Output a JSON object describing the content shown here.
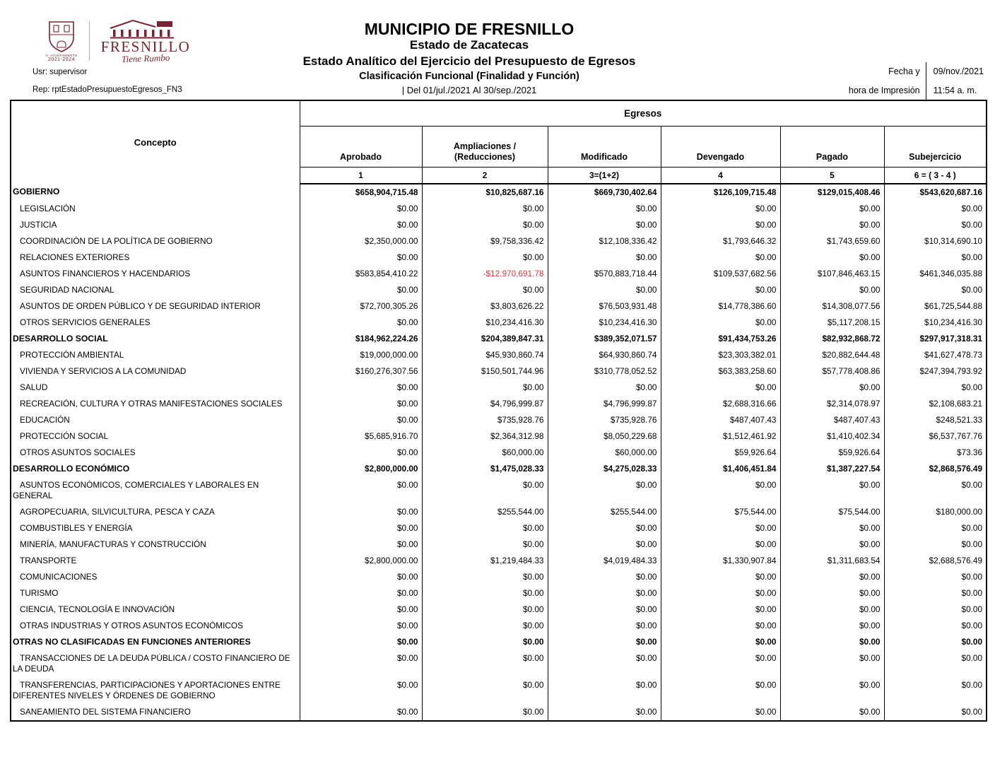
{
  "colors": {
    "brand_maroon": "#7a2330",
    "negative_red": "#e5333a",
    "border": "#000000"
  },
  "header": {
    "logo": {
      "council": "H. AYUNTAMIENTO",
      "period": "2021-2024",
      "municipality": "FRESNILLO",
      "slogan": "Tiene Rumbo"
    },
    "user": "Usr: supervisor",
    "report": "Rep: rptEstadoPresupuestoEgresos_FN3",
    "titles": [
      "MUNICIPIO DE FRESNILLO",
      "Estado de Zacatecas",
      "Estado Analítico del Ejercicio del Presupuesto de Egresos",
      "Clasificación Funcional (Finalidad y Función)",
      "| Del 01/jul./2021 Al 30/sep./2021"
    ],
    "print_info": {
      "label_line1": "Fecha y",
      "label_line2": "hora de Impresión",
      "date": "09/nov./2021",
      "time": "11:54 a. m."
    }
  },
  "table": {
    "concept_header": "Concepto",
    "group_header": "Egresos",
    "columns": [
      "Aprobado",
      "Ampliaciones /\n(Reducciones)",
      "Modificado",
      "Devengado",
      "Pagado",
      "Subejercicio"
    ],
    "column_numbers": [
      "1",
      "2",
      "3=(1+2)",
      "4",
      "5",
      "6 = ( 3 - 4 )"
    ],
    "rows": [
      {
        "label": "GOBIERNO",
        "section": true,
        "values": [
          "$658,904,715.48",
          "$10,825,687.16",
          "$669,730,402.64",
          "$126,109,715.48",
          "$129,015,408.46",
          "$543,620,687.16"
        ]
      },
      {
        "label": "LEGISLACIÓN",
        "section": false,
        "values": [
          "$0.00",
          "$0.00",
          "$0.00",
          "$0.00",
          "$0.00",
          "$0.00"
        ]
      },
      {
        "label": "JUSTICIA",
        "section": false,
        "values": [
          "$0.00",
          "$0.00",
          "$0.00",
          "$0.00",
          "$0.00",
          "$0.00"
        ]
      },
      {
        "label": "COORDINACIÓN DE LA POLÍTICA DE GOBIERNO",
        "section": false,
        "values": [
          "$2,350,000.00",
          "$9,758,336.42",
          "$12,108,336.42",
          "$1,793,646.32",
          "$1,743,659.60",
          "$10,314,690.10"
        ]
      },
      {
        "label": "RELACIONES EXTERIORES",
        "section": false,
        "values": [
          "$0.00",
          "$0.00",
          "$0.00",
          "$0.00",
          "$0.00",
          "$0.00"
        ]
      },
      {
        "label": "ASUNTOS FINANCIEROS Y HACENDARIOS",
        "section": false,
        "values": [
          "$583,854,410.22",
          "-$12,970,691.78",
          "$570,883,718.44",
          "$109,537,682.56",
          "$107,846,463.15",
          "$461,346,035.88"
        ]
      },
      {
        "label": "SEGURIDAD NACIONAL",
        "section": false,
        "values": [
          "$0.00",
          "$0.00",
          "$0.00",
          "$0.00",
          "$0.00",
          "$0.00"
        ]
      },
      {
        "label": "ASUNTOS DE ORDEN PÚBLICO Y DE SEGURIDAD INTERIOR",
        "section": false,
        "values": [
          "$72,700,305.26",
          "$3,803,626.22",
          "$76,503,931.48",
          "$14,778,386.60",
          "$14,308,077.56",
          "$61,725,544.88"
        ]
      },
      {
        "label": "OTROS SERVICIOS GENERALES",
        "section": false,
        "values": [
          "$0.00",
          "$10,234,416.30",
          "$10,234,416.30",
          "$0.00",
          "$5,117,208.15",
          "$10,234,416.30"
        ]
      },
      {
        "label": "DESARROLLO SOCIAL",
        "section": true,
        "values": [
          "$184,962,224.26",
          "$204,389,847.31",
          "$389,352,071.57",
          "$91,434,753.26",
          "$82,932,868.72",
          "$297,917,318.31"
        ]
      },
      {
        "label": "PROTECCIÓN AMBIENTAL",
        "section": false,
        "values": [
          "$19,000,000.00",
          "$45,930,860.74",
          "$64,930,860.74",
          "$23,303,382.01",
          "$20,882,644.48",
          "$41,627,478.73"
        ]
      },
      {
        "label": "VIVIENDA Y SERVICIOS  A LA COMUNIDAD",
        "section": false,
        "values": [
          "$160,276,307.56",
          "$150,501,744.96",
          "$310,778,052.52",
          "$63,383,258.60",
          "$57,778,408.86",
          "$247,394,793.92"
        ]
      },
      {
        "label": "SALUD",
        "section": false,
        "values": [
          "$0.00",
          "$0.00",
          "$0.00",
          "$0.00",
          "$0.00",
          "$0.00"
        ]
      },
      {
        "label": "RECREACIÓN, CULTURA Y OTRAS MANIFESTACIONES SOCIALES",
        "section": false,
        "values": [
          "$0.00",
          "$4,796,999.87",
          "$4,796,999.87",
          "$2,688,316.66",
          "$2,314,078.97",
          "$2,108,683.21"
        ]
      },
      {
        "label": "EDUCACIÓN",
        "section": false,
        "values": [
          "$0.00",
          "$735,928.76",
          "$735,928.76",
          "$487,407.43",
          "$487,407.43",
          "$248,521.33"
        ]
      },
      {
        "label": "PROTECCIÓN SOCIAL",
        "section": false,
        "values": [
          "$5,685,916.70",
          "$2,364,312.98",
          "$8,050,229.68",
          "$1,512,461.92",
          "$1,410,402.34",
          "$6,537,767.76"
        ]
      },
      {
        "label": "OTROS ASUNTOS SOCIALES",
        "section": false,
        "values": [
          "$0.00",
          "$60,000.00",
          "$60,000.00",
          "$59,926.64",
          "$59,926.64",
          "$73.36"
        ]
      },
      {
        "label": "DESARROLLO ECONÓMICO",
        "section": true,
        "values": [
          "$2,800,000.00",
          "$1,475,028.33",
          "$4,275,028.33",
          "$1,406,451.84",
          "$1,387,227.54",
          "$2,868,576.49"
        ]
      },
      {
        "label": "ASUNTOS ECONÓMICOS, COMERCIALES Y LABORALES EN GENERAL",
        "section": false,
        "values": [
          "$0.00",
          "$0.00",
          "$0.00",
          "$0.00",
          "$0.00",
          "$0.00"
        ]
      },
      {
        "label": "AGROPECUARIA, SILVICULTURA, PESCA Y CAZA",
        "section": false,
        "values": [
          "$0.00",
          "$255,544.00",
          "$255,544.00",
          "$75,544.00",
          "$75,544.00",
          "$180,000.00"
        ]
      },
      {
        "label": "COMBUSTIBLES Y ENERGÍA",
        "section": false,
        "values": [
          "$0.00",
          "$0.00",
          "$0.00",
          "$0.00",
          "$0.00",
          "$0.00"
        ]
      },
      {
        "label": "MINERÍA, MANUFACTURAS Y CONSTRUCCIÓN",
        "section": false,
        "values": [
          "$0.00",
          "$0.00",
          "$0.00",
          "$0.00",
          "$0.00",
          "$0.00"
        ]
      },
      {
        "label": "TRANSPORTE",
        "section": false,
        "values": [
          "$2,800,000.00",
          "$1,219,484.33",
          "$4,019,484.33",
          "$1,330,907.84",
          "$1,311,683.54",
          "$2,688,576.49"
        ]
      },
      {
        "label": "COMUNICACIONES",
        "section": false,
        "values": [
          "$0.00",
          "$0.00",
          "$0.00",
          "$0.00",
          "$0.00",
          "$0.00"
        ]
      },
      {
        "label": "TURISMO",
        "section": false,
        "values": [
          "$0.00",
          "$0.00",
          "$0.00",
          "$0.00",
          "$0.00",
          "$0.00"
        ]
      },
      {
        "label": "CIENCIA, TECNOLOGÍA E INNOVACIÓN",
        "section": false,
        "values": [
          "$0.00",
          "$0.00",
          "$0.00",
          "$0.00",
          "$0.00",
          "$0.00"
        ]
      },
      {
        "label": "OTRAS INDUSTRIAS Y OTROS ASUNTOS ECONÓMICOS",
        "section": false,
        "values": [
          "$0.00",
          "$0.00",
          "$0.00",
          "$0.00",
          "$0.00",
          "$0.00"
        ]
      },
      {
        "label": "OTRAS NO CLASIFICADAS EN FUNCIONES ANTERIORES",
        "section": true,
        "values": [
          "$0.00",
          "$0.00",
          "$0.00",
          "$0.00",
          "$0.00",
          "$0.00"
        ]
      },
      {
        "label": "TRANSACCIONES DE LA DEUDA PÚBLICA / COSTO FINANCIERO DE LA DEUDA",
        "section": false,
        "values": [
          "$0.00",
          "$0.00",
          "$0.00",
          "$0.00",
          "$0.00",
          "$0.00"
        ]
      },
      {
        "label": "TRANSFERENCIAS, PARTICIPACIONES Y APORTACIONES ENTRE DIFERENTES NIVELES Y ÓRDENES DE GOBIERNO",
        "section": false,
        "values": [
          "$0.00",
          "$0.00",
          "$0.00",
          "$0.00",
          "$0.00",
          "$0.00"
        ]
      },
      {
        "label": "SANEAMIENTO DEL SISTEMA FINANCIERO",
        "section": false,
        "values": [
          "$0.00",
          "$0.00",
          "$0.00",
          "$0.00",
          "$0.00",
          "$0.00"
        ]
      }
    ]
  }
}
